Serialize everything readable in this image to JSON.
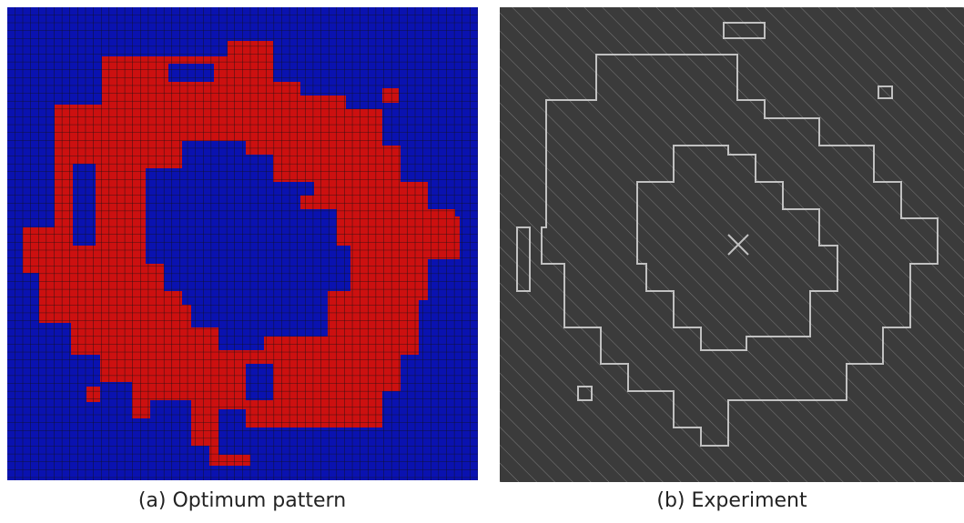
{
  "panels": [
    {
      "caption": "(a) Optimum pattern"
    },
    {
      "caption": "(b) Experiment"
    }
  ]
}
